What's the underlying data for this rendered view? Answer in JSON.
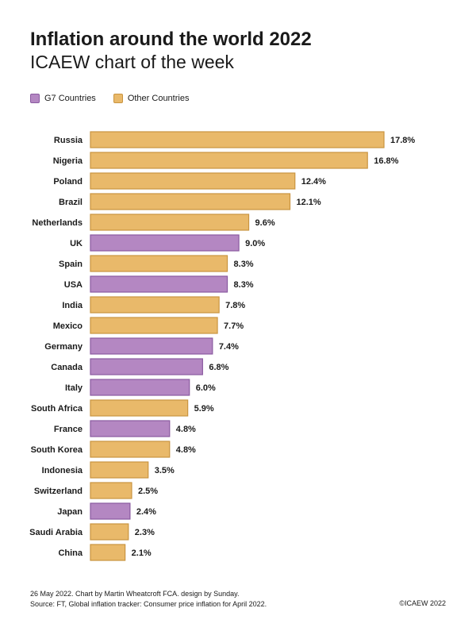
{
  "title": "Inflation around the world 2022",
  "subtitle": "ICAEW chart of the week",
  "colors": {
    "g7_fill": "#b487c2",
    "g7_stroke": "#8a5aa0",
    "other_fill": "#e9b96a",
    "other_stroke": "#c99440"
  },
  "legend": [
    {
      "key": "g7",
      "label": "G7 Countries"
    },
    {
      "key": "other",
      "label": "Other Countries"
    }
  ],
  "chart_data": {
    "type": "bar",
    "orientation": "horizontal",
    "categories": [
      "Russia",
      "Nigeria",
      "Poland",
      "Brazil",
      "Netherlands",
      "UK",
      "Spain",
      "USA",
      "India",
      "Mexico",
      "Germany",
      "Canada",
      "Italy",
      "South Africa",
      "France",
      "South Korea",
      "Indonesia",
      "Switzerland",
      "Japan",
      "Saudi Arabia",
      "China"
    ],
    "values": [
      17.8,
      16.8,
      12.4,
      12.1,
      9.6,
      9.0,
      8.3,
      8.3,
      7.8,
      7.7,
      7.4,
      6.8,
      6.0,
      5.9,
      4.8,
      4.8,
      3.5,
      2.5,
      2.4,
      2.3,
      2.1
    ],
    "value_labels": [
      "17.8%",
      "16.8%",
      "12.4%",
      "12.1%",
      "9.6%",
      "9.0%",
      "8.3%",
      "8.3%",
      "7.8%",
      "7.7%",
      "7.4%",
      "6.8%",
      "6.0%",
      "5.9%",
      "4.8%",
      "4.8%",
      "3.5%",
      "2.5%",
      "2.4%",
      "2.3%",
      "2.1%"
    ],
    "group": [
      "other",
      "other",
      "other",
      "other",
      "other",
      "g7",
      "other",
      "g7",
      "other",
      "other",
      "g7",
      "g7",
      "g7",
      "other",
      "g7",
      "other",
      "other",
      "other",
      "g7",
      "other",
      "other"
    ],
    "xlim": [
      0,
      17.8
    ],
    "grid": false,
    "legend_position": "top-left"
  },
  "footer": {
    "line1": "26 May 2022.   Chart by Martin Wheatcroft FCA. design by Sunday.",
    "line2": "Source: FT, Global inflation tracker: Consumer price inflation for April 2022.",
    "copyright": "©ICAEW 2022"
  }
}
